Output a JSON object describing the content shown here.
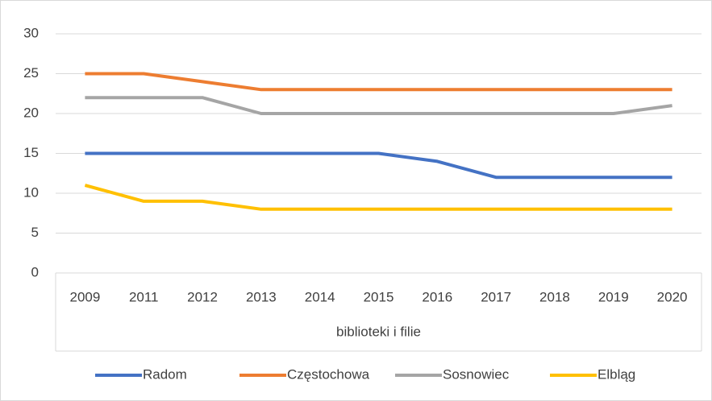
{
  "chart_data": {
    "type": "line",
    "categories": [
      "2009",
      "2011",
      "2012",
      "2013",
      "2014",
      "2015",
      "2016",
      "2017",
      "2018",
      "2019",
      "2020"
    ],
    "category_group": "biblioteki i filie",
    "series": [
      {
        "name": "Radom",
        "color": "#4472c4",
        "values": [
          15,
          15,
          15,
          15,
          15,
          15,
          14,
          12,
          12,
          12,
          12
        ]
      },
      {
        "name": "Częstochowa",
        "color": "#ed7d31",
        "values": [
          25,
          25,
          24,
          23,
          23,
          23,
          23,
          23,
          23,
          23,
          23
        ]
      },
      {
        "name": "Sosnowiec",
        "color": "#a5a5a5",
        "values": [
          22,
          22,
          22,
          20,
          20,
          20,
          20,
          20,
          20,
          20,
          21
        ]
      },
      {
        "name": "Elbląg",
        "color": "#ffc000",
        "values": [
          11,
          9,
          9,
          8,
          8,
          8,
          8,
          8,
          8,
          8,
          8
        ]
      }
    ],
    "ylim": [
      0,
      30
    ],
    "yticks": [
      0,
      5,
      10,
      15,
      20,
      25,
      30
    ],
    "grid": true,
    "legend": "bottom"
  }
}
